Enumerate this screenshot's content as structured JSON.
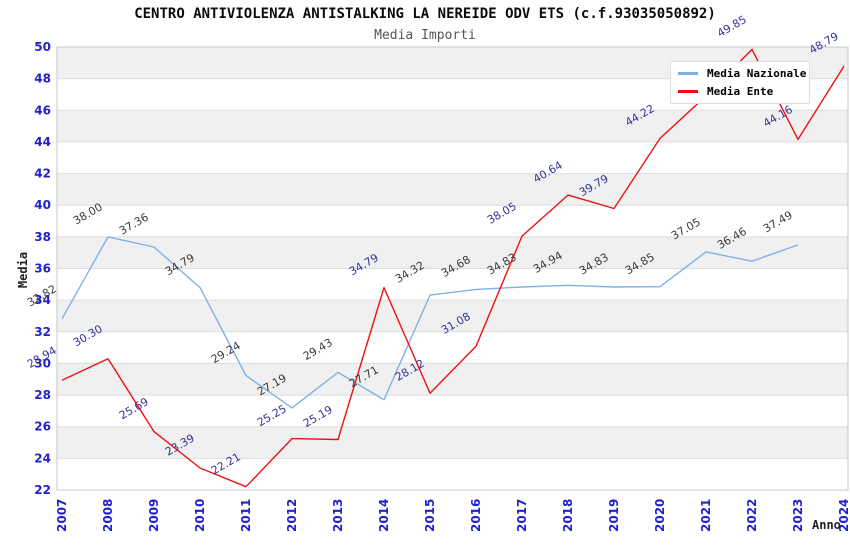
{
  "header": {
    "title": "CENTRO ANTIVIOLENZA ANTISTALKING LA NEREIDE ODV ETS (c.f.93035050892)",
    "subtitle": "Media Importi"
  },
  "legend": {
    "items": [
      {
        "label": "Media Nazionale",
        "color": "#7fb2e3"
      },
      {
        "label": "Media Ente",
        "color": "#ee1111"
      }
    ]
  },
  "axes": {
    "y_label": "Media",
    "x_label": "Anno",
    "y_min": 22,
    "y_max": 50,
    "y_tick_step": 2,
    "tick_color": "#2222cc",
    "band_color": "#f0f0f0",
    "grid_color": "#dcdcdc",
    "border_color": "#c8c8c8"
  },
  "chart_data": {
    "type": "line",
    "title": "CENTRO ANTIVIOLENZA ANTISTALKING LA NEREIDE ODV ETS (c.f.93035050892)",
    "subtitle": "Media Importi",
    "xlabel": "Anno",
    "ylabel": "Media",
    "ylim": [
      22,
      50
    ],
    "ytick_step": 2,
    "grid": "horizontal-bands-alternating",
    "legend_position": "top-right",
    "categories": [
      "2007",
      "2008",
      "2009",
      "2010",
      "2011",
      "2012",
      "2013",
      "2014",
      "2015",
      "2016",
      "2017",
      "2018",
      "2019",
      "2020",
      "2021",
      "2022",
      "2023",
      "2024"
    ],
    "series": [
      {
        "name": "Media Nazionale",
        "color": "#7fb2e3",
        "label_color": "#3a3a3a",
        "values": [
          32.82,
          38.0,
          37.36,
          34.79,
          29.24,
          27.19,
          29.43,
          27.71,
          34.32,
          34.68,
          34.83,
          34.94,
          34.83,
          34.85,
          37.05,
          36.46,
          37.49,
          null
        ]
      },
      {
        "name": "Media Ente",
        "color": "#ee1111",
        "label_color": "#32329b",
        "values": [
          28.94,
          30.3,
          25.69,
          23.39,
          22.21,
          25.25,
          25.19,
          34.79,
          28.12,
          31.08,
          38.05,
          40.64,
          39.79,
          44.22,
          46.9,
          49.85,
          44.16,
          48.79
        ],
        "hidden_label_indices": [
          14
        ],
        "estimated_indices": [
          14
        ]
      }
    ]
  }
}
